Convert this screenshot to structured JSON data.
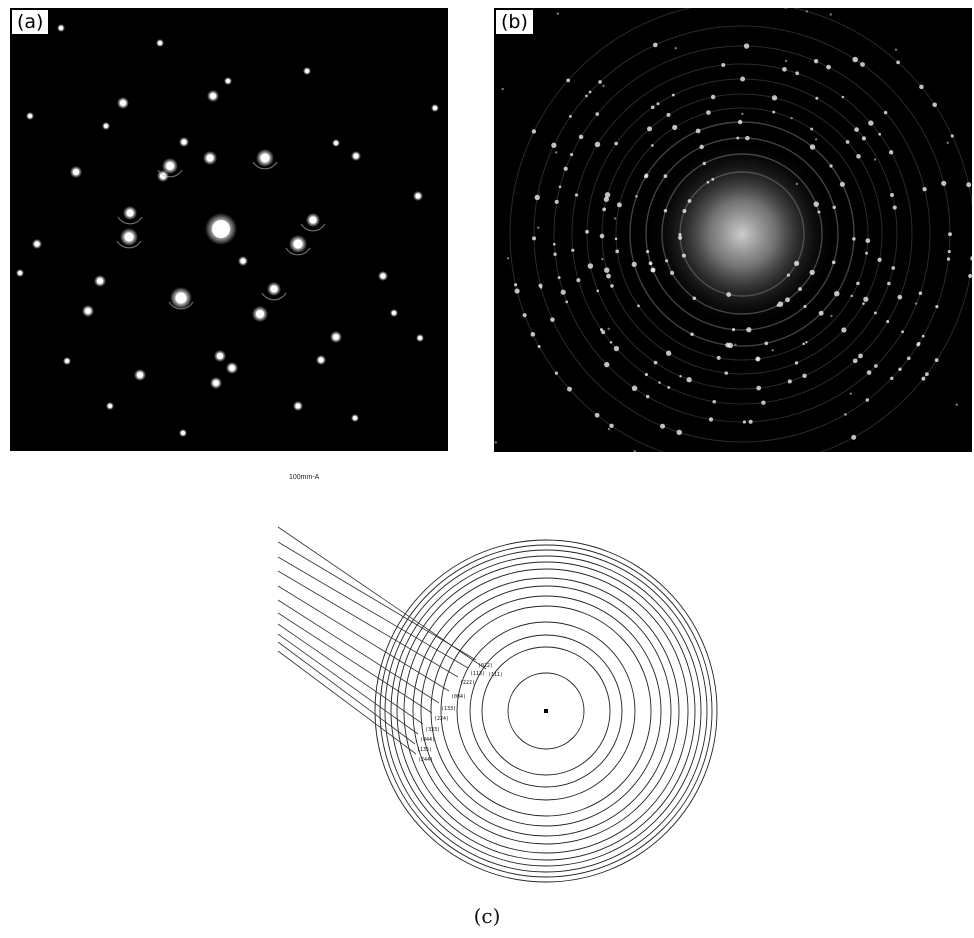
{
  "panels": {
    "a": {
      "label": "(a)"
    },
    "b": {
      "label": "(b)"
    },
    "c": {
      "scale_label": "100mm-A",
      "caption": "(c)",
      "ring_labels": [
        "(111)",
        "(022)",
        "(113)",
        "(222)",
        "(004)",
        "(133)",
        "(224)",
        "(333)",
        "(044)",
        "(135)",
        "(244)"
      ]
    }
  },
  "colors": {
    "pattern_background": "#000000",
    "spot": "#ffffff",
    "ring_line": "#222222"
  }
}
